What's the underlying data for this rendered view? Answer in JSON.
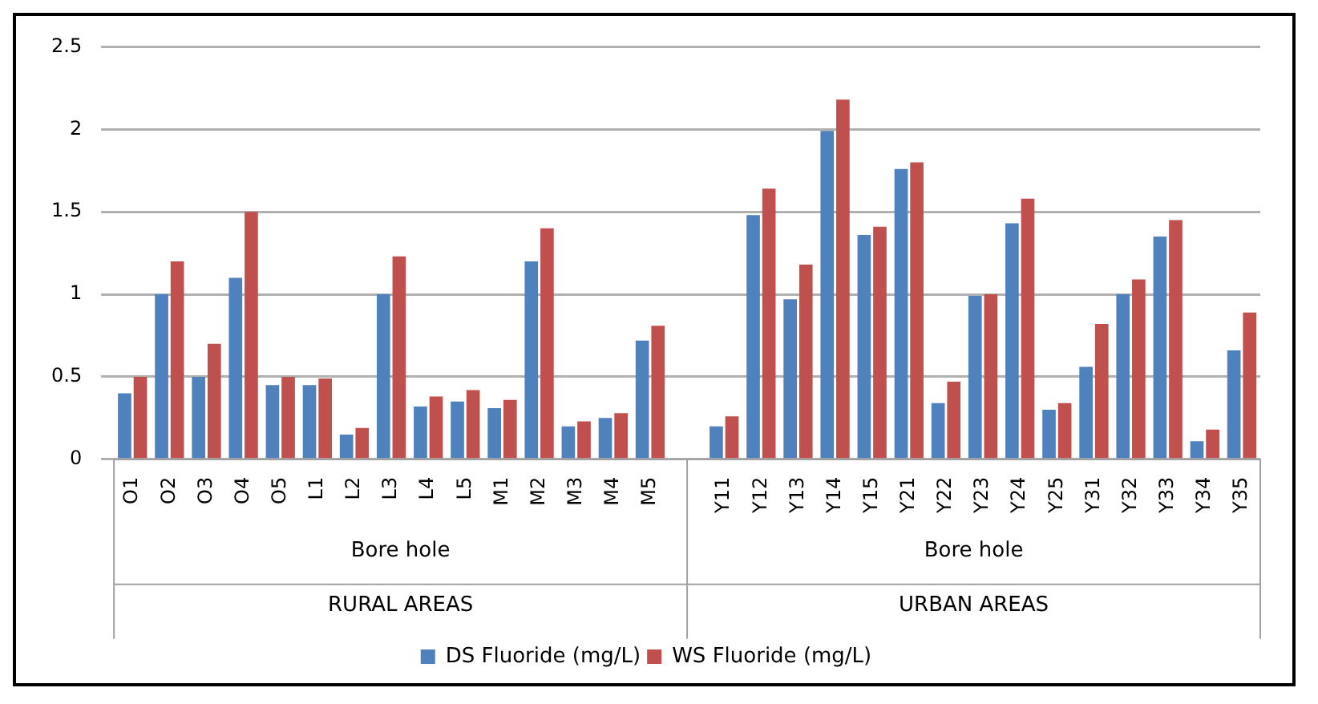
{
  "chart_data": {
    "type": "bar",
    "categories": [
      "O1",
      "O2",
      "O3",
      "O4",
      "O5",
      "L1",
      "L2",
      "L3",
      "L4",
      "L5",
      "M1",
      "M2",
      "M3",
      "M4",
      "M5",
      null,
      "Y11",
      "Y12",
      "Y13",
      "Y14",
      "Y15",
      "Y21",
      "Y22",
      "Y23",
      "Y24",
      "Y25",
      "Y31",
      "Y32",
      "Y33",
      "Y34",
      "Y35"
    ],
    "series": [
      {
        "name": "DS Fluoride (mg/L)",
        "color": "#4f81bd",
        "values": [
          0.4,
          1.0,
          0.5,
          1.1,
          0.45,
          0.45,
          0.15,
          1.0,
          0.32,
          0.35,
          0.31,
          1.2,
          0.2,
          0.25,
          0.72,
          null,
          0.2,
          1.48,
          0.97,
          1.99,
          1.36,
          1.76,
          0.34,
          0.99,
          1.43,
          0.3,
          0.56,
          1.0,
          1.35,
          0.11,
          0.66
        ]
      },
      {
        "name": "WS Fluoride (mg/L)",
        "color": "#c0504d",
        "values": [
          0.5,
          1.2,
          0.7,
          1.5,
          0.5,
          0.49,
          0.19,
          1.23,
          0.38,
          0.42,
          0.36,
          1.4,
          0.23,
          0.28,
          0.81,
          null,
          0.26,
          1.64,
          1.18,
          2.18,
          1.41,
          1.8,
          0.47,
          1.0,
          1.58,
          0.34,
          0.82,
          1.09,
          1.45,
          0.18,
          0.89
        ]
      }
    ],
    "annotations": [
      "Bore hole",
      "Bore hole",
      "RURAL AREAS",
      "URBAN AREAS"
    ],
    "ylim": [
      0,
      2.5
    ],
    "yticks": [
      0,
      0.5,
      1,
      1.5,
      2,
      2.5
    ],
    "grid": "y",
    "legend": "bottom"
  }
}
